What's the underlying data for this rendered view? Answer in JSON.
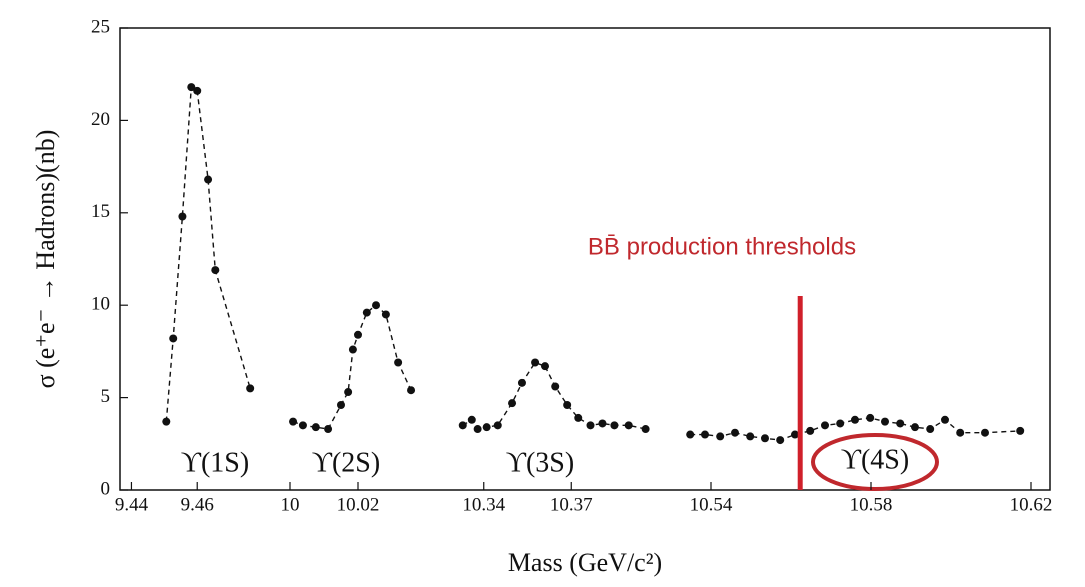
{
  "chart_data": {
    "type": "scatter",
    "ylabel": "σ (e⁺e⁻ → Hadrons)(nb)",
    "xlabel": "Mass (GeV/c²)",
    "ylim": [
      0,
      25
    ],
    "yticks": [
      0,
      5,
      10,
      15,
      20,
      25
    ],
    "color": "#111111",
    "fit_line": "dashed",
    "segments": [
      {
        "label": "ϒ(1S)",
        "xlim": [
          9.435,
          9.48
        ],
        "xticks": [
          9.44,
          9.46
        ],
        "x": [
          9.4506,
          9.4527,
          9.4555,
          9.4582,
          9.46,
          9.4633,
          9.4655,
          9.4761
        ],
        "values": [
          3.7,
          8.2,
          14.8,
          21.8,
          21.6,
          16.8,
          11.9,
          5.5
        ]
      },
      {
        "label": "ϒ(2S)",
        "xlim": [
          9.995,
          10.04
        ],
        "xticks": [
          10.0,
          10.02
        ],
        "x": [
          10.0009,
          10.0038,
          10.0076,
          10.0112,
          10.015,
          10.0171,
          10.0185,
          10.02,
          10.0226,
          10.0253,
          10.0282,
          10.0318,
          10.0356
        ],
        "values": [
          3.7,
          3.5,
          3.4,
          3.3,
          4.6,
          5.3,
          7.6,
          8.4,
          9.6,
          10.0,
          9.5,
          6.9,
          5.4
        ]
      },
      {
        "label": "ϒ(3S)",
        "xlim": [
          10.325,
          10.397
        ],
        "xticks": [
          10.34,
          10.37
        ],
        "x": [
          10.3328,
          10.3359,
          10.3379,
          10.341,
          10.3448,
          10.3497,
          10.3531,
          10.3576,
          10.361,
          10.3645,
          10.3686,
          10.3724,
          10.3766,
          10.3807,
          10.3848,
          10.3897,
          10.3955
        ],
        "values": [
          3.5,
          3.8,
          3.3,
          3.4,
          3.5,
          4.7,
          5.8,
          6.9,
          6.7,
          5.6,
          4.6,
          3.9,
          3.5,
          3.6,
          3.5,
          3.5,
          3.3
        ]
      },
      {
        "label": "ϒ(4S)",
        "xlim": [
          10.53,
          10.625
        ],
        "xticks": [
          10.54,
          10.58,
          10.62
        ],
        "x": [
          10.5348,
          10.5385,
          10.5423,
          10.546,
          10.5498,
          10.5535,
          10.5573,
          10.561,
          10.5648,
          10.5685,
          10.5723,
          10.576,
          10.5798,
          10.5835,
          10.5873,
          10.591,
          10.5948,
          10.5985,
          10.6023,
          10.6085,
          10.6173
        ],
        "values": [
          3.0,
          3.0,
          2.9,
          3.1,
          2.9,
          2.8,
          2.7,
          3.0,
          3.2,
          3.5,
          3.6,
          3.8,
          3.9,
          3.7,
          3.6,
          3.4,
          3.3,
          3.8,
          3.1,
          3.1,
          3.2
        ]
      }
    ],
    "threshold": {
      "label": "BB̄ production thresholds",
      "color": "#d0202a",
      "x": 10.5623,
      "y_top": 10.5
    }
  }
}
